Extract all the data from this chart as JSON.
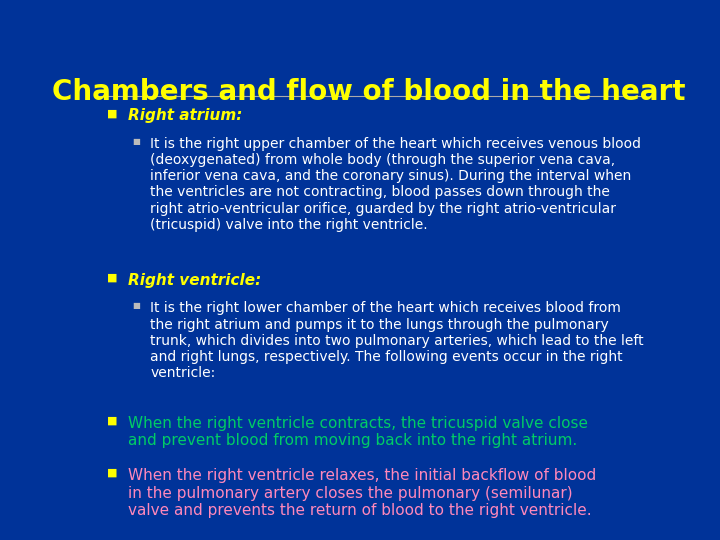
{
  "title": "Chambers and flow of blood in the heart",
  "title_color": "#FFFF00",
  "title_fontsize": 20,
  "background_color": "#003399",
  "bullet_color": "#FFFF00",
  "sections": [
    {
      "level": 1,
      "text": "Right atrium:",
      "color": "#FFFF00",
      "italic": true,
      "bold": true
    },
    {
      "level": 2,
      "text": "It is the right upper chamber of the heart which receives venous blood\n(deoxygenated) from whole body (through the superior vena cava,\ninferior vena cava, and the coronary sinus). During the interval when\nthe ventricles are not contracting, blood passes down through the\nright atrio-ventricular orifice, guarded by the right atrio-ventricular\n(tricuspid) valve into the right ventricle.",
      "color": "#FFFFFF",
      "italic": false,
      "bold": false
    },
    {
      "level": 1,
      "text": "Right ventricle:",
      "color": "#FFFF00",
      "italic": true,
      "bold": true
    },
    {
      "level": 2,
      "text": "It is the right lower chamber of the heart which receives blood from\nthe right atrium and pumps it to the lungs through the pulmonary\ntrunk, which divides into two pulmonary arteries, which lead to the left\nand right lungs, respectively. The following events occur in the right\nventricle:",
      "color": "#FFFFFF",
      "italic": false,
      "bold": false
    },
    {
      "level": 1,
      "text": "When the right ventricle contracts, the tricuspid valve close\nand prevent blood from moving back into the right atrium.",
      "color": "#00CC66",
      "italic": false,
      "bold": false
    },
    {
      "level": 1,
      "text": "When the right ventricle relaxes, the initial backflow of blood\nin the pulmonary artery closes the pulmonary (semilunar)\nvalve and prevents the return of blood to the right ventricle.",
      "color": "#FF88BB",
      "italic": false,
      "bold": false
    }
  ]
}
